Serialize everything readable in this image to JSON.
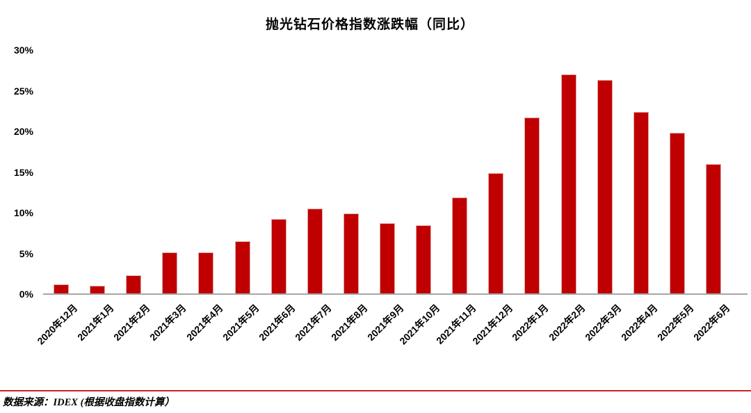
{
  "chart_data": {
    "type": "bar",
    "title": "抛光钻石价格指数涨跌幅（同比）",
    "categories": [
      "2020年12月",
      "2021年1月",
      "2021年2月",
      "2021年3月",
      "2021年4月",
      "2021年5月",
      "2021年6月",
      "2021年7月",
      "2021年8月",
      "2021年9月",
      "2021年10月",
      "2021年11月",
      "2021年12月",
      "2022年1月",
      "2022年2月",
      "2022年3月",
      "2022年4月",
      "2022年5月",
      "2022年6月"
    ],
    "values": [
      1.2,
      1.0,
      2.3,
      5.1,
      5.1,
      6.5,
      9.2,
      10.5,
      9.9,
      8.7,
      8.5,
      11.9,
      14.9,
      21.7,
      27.0,
      26.3,
      22.4,
      19.8,
      16.0
    ],
    "unit": "%",
    "ylim": [
      0,
      30
    ],
    "ytick_step": 5,
    "ytick_labels": [
      "0%",
      "5%",
      "10%",
      "15%",
      "20%",
      "25%",
      "30%"
    ],
    "xlabel": "",
    "ylabel": "",
    "grid": false,
    "legend_position": "none",
    "bar_color": "#c00000",
    "bar_edge_color": "#e2a6a6",
    "axis_line_color": "#a6a6a6"
  },
  "footer": {
    "source_text": "数据来源：IDEX (根据收盘指数计算）",
    "divider_color": "#cc2222"
  }
}
